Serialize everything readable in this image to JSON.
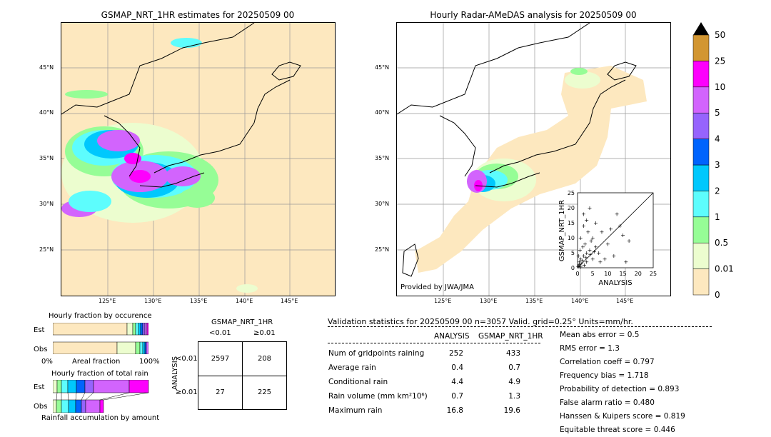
{
  "left_map": {
    "title": "GSMAP_NRT_1HR estimates for 20250509 00",
    "lat_labels": [
      "45°N",
      "40°N",
      "35°N",
      "30°N",
      "25°N"
    ],
    "lon_labels": [
      "125°E",
      "130°E",
      "135°E",
      "140°E",
      "145°E"
    ]
  },
  "right_map": {
    "title": "Hourly Radar-AMeDAS analysis for 20250509 00",
    "lat_labels": [
      "45°N",
      "40°N",
      "35°N",
      "30°N",
      "25°N"
    ],
    "lon_labels": [
      "125°E",
      "130°E",
      "135°E",
      "140°E",
      "145°E"
    ],
    "credit": "Provided by JWA/JMA"
  },
  "colorbar": {
    "labels": [
      "0",
      "0.01",
      "0.5",
      "1",
      "2",
      "3",
      "4",
      "5",
      "10",
      "25",
      "50"
    ],
    "colors": [
      "#fde8bf",
      "#ecfdcf",
      "#96fd96",
      "#5dfdfd",
      "#00c8fd",
      "#0064fd",
      "#9664fd",
      "#d264fd",
      "#fd00fd",
      "#d29632"
    ]
  },
  "scatter": {
    "xlabel": "ANALYSIS",
    "ylabel": "GSMAP_NRT_1HR",
    "ticks": [
      "0",
      "5",
      "10",
      "15",
      "20",
      "25"
    ],
    "points": [
      [
        0.2,
        0.5
      ],
      [
        0.5,
        1.2
      ],
      [
        1,
        0.3
      ],
      [
        1.5,
        2.5
      ],
      [
        2,
        4
      ],
      [
        0.8,
        6
      ],
      [
        3,
        2
      ],
      [
        2.5,
        8
      ],
      [
        1,
        10
      ],
      [
        3.5,
        12
      ],
      [
        4,
        6
      ],
      [
        5,
        3
      ],
      [
        2,
        14
      ],
      [
        3,
        16
      ],
      [
        4.5,
        9
      ],
      [
        6,
        7
      ],
      [
        7,
        5
      ],
      [
        8,
        12
      ],
      [
        9,
        3
      ],
      [
        10,
        8
      ],
      [
        12,
        4
      ],
      [
        13,
        18
      ],
      [
        15,
        11
      ],
      [
        17,
        9
      ],
      [
        2,
        18
      ],
      [
        4,
        20
      ],
      [
        1,
        3
      ],
      [
        0.5,
        0.8
      ],
      [
        1.2,
        1.5
      ],
      [
        2.2,
        1
      ],
      [
        3,
        5
      ],
      [
        5,
        10
      ],
      [
        6,
        15
      ],
      [
        7.5,
        2
      ],
      [
        0.3,
        4
      ],
      [
        0.6,
        2
      ],
      [
        1.8,
        7
      ],
      [
        2.8,
        3.5
      ],
      [
        4.2,
        4.5
      ],
      [
        5.5,
        5.5
      ],
      [
        11,
        13
      ],
      [
        14,
        14
      ],
      [
        16,
        2
      ]
    ]
  },
  "occurrence": {
    "title": "Hourly fraction by occurence",
    "est_label": "Est",
    "obs_label": "Obs",
    "axis_left": "0%",
    "axis_mid": "Areal fraction",
    "axis_right": "100%"
  },
  "total_rain": {
    "title": "Hourly fraction of total rain",
    "est_label": "Est",
    "obs_label": "Obs",
    "footer": "Rainfall accumulation by amount"
  },
  "contingency": {
    "title": "GSMAP_NRT_1HR",
    "col1": "<0.01",
    "col2": "≥0.01",
    "row_axis": "ANALYSIS",
    "row1": "<0.01",
    "row2": "≥0.01",
    "cells": [
      "2597",
      "208",
      "27",
      "225"
    ]
  },
  "validation": {
    "header": "Validation statistics for 20250509 00  n=3057 Valid. grid=0.25° Units=mm/hr.",
    "col_analysis": "ANALYSIS",
    "col_gsmap": "GSMAP_NRT_1HR",
    "rows": [
      {
        "label": "Num of gridpoints raining",
        "a": "252",
        "g": "433"
      },
      {
        "label": "Average rain",
        "a": "0.4",
        "g": "0.7"
      },
      {
        "label": "Conditional rain",
        "a": "4.4",
        "g": "4.9"
      },
      {
        "label": "Rain volume (mm km²10⁶)",
        "a": "0.7",
        "g": "1.3"
      },
      {
        "label": "Maximum rain",
        "a": "16.8",
        "g": "19.6"
      }
    ],
    "scores": [
      "Mean abs error =    0.5",
      "RMS error =    1.3",
      "Correlation coeff =  0.797",
      "Frequency bias =  1.718",
      "Probability of detection =  0.893",
      "False alarm ratio =  0.480",
      "Hanssen & Kuipers score =  0.819",
      "Equitable threat score =  0.446"
    ]
  },
  "chart_data": {
    "type": "scatter",
    "x_range": [
      0,
      25
    ],
    "y_range": [
      0,
      25
    ],
    "xlabel": "ANALYSIS",
    "ylabel": "GSMAP_NRT_1HR"
  }
}
